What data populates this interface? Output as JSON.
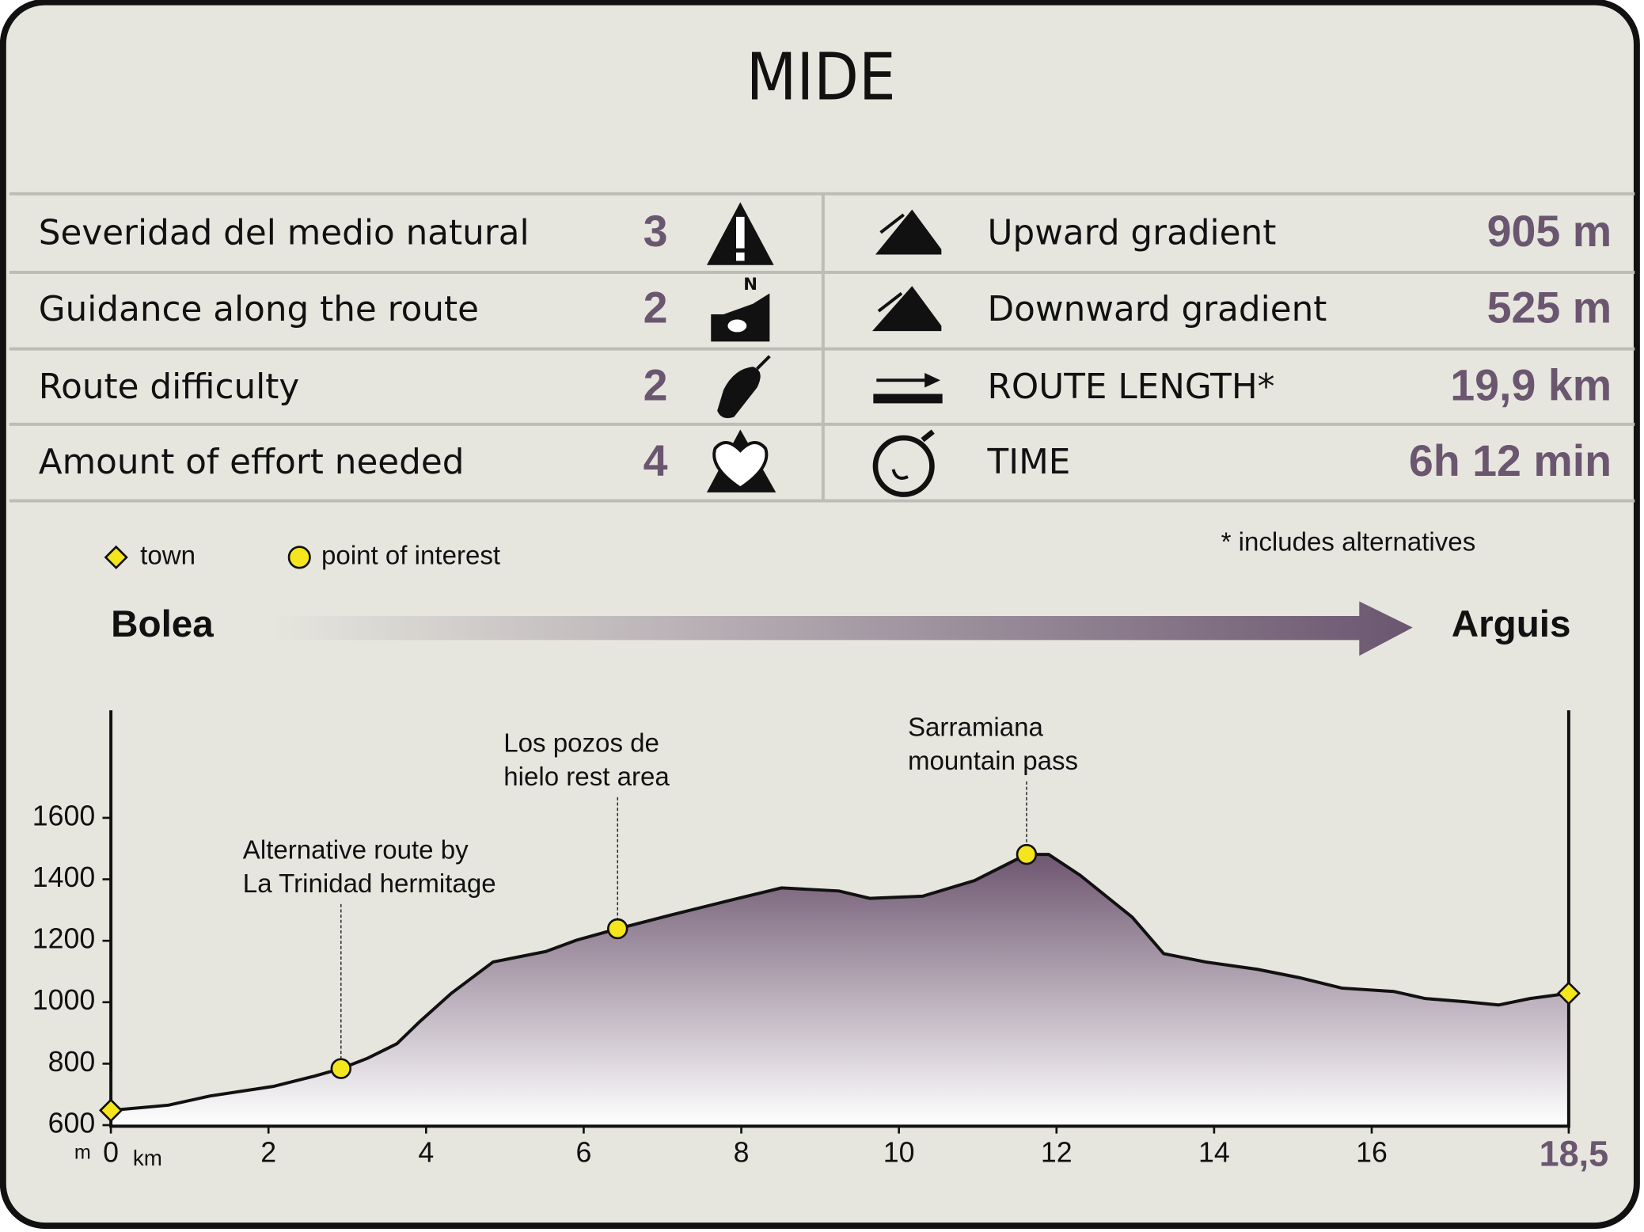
{
  "header": {
    "title": "MIDE"
  },
  "table": {
    "left": [
      {
        "label": "Severidad del medio natural",
        "value": "3"
      },
      {
        "label": "Guidance along the route",
        "value": "2"
      },
      {
        "label": "Route difficulty",
        "value": "2"
      },
      {
        "label": "Amount of effort needed",
        "value": "4"
      }
    ],
    "right": [
      {
        "label": "Upward gradient",
        "value": "905 m"
      },
      {
        "label": "Downward gradient",
        "value": "525 m"
      },
      {
        "label": "ROUTE LENGTH*",
        "value": "19,9 km"
      },
      {
        "label": "TIME",
        "value": "6h 12 min"
      }
    ]
  },
  "legend": {
    "town": "town",
    "poi": "point of interest",
    "note": "* includes alternatives"
  },
  "route": {
    "start": "Bolea",
    "end": "Arguis"
  },
  "chart_data": {
    "type": "area",
    "x_unit": "km",
    "y_unit": "m",
    "xlim": [
      0,
      18.5
    ],
    "ylim": [
      600,
      1950
    ],
    "xticks": [
      0,
      2,
      4,
      6,
      8,
      10,
      12,
      14,
      16,
      {
        "value": 18.5,
        "label": "18,5"
      }
    ],
    "yticks": [
      600,
      800,
      1000,
      1200,
      1400,
      1600
    ],
    "series": [
      {
        "color": "#6e5670",
        "x": [
          0,
          0.73,
          1.26,
          2.06,
          2.59,
          2.92,
          3.26,
          3.63,
          3.92,
          4.32,
          4.85,
          5.52,
          5.91,
          6.43,
          7.11,
          7.91,
          8.51,
          9.24,
          9.63,
          10.3,
          10.96,
          11.62,
          11.9,
          12.3,
          12.96,
          13.36,
          13.89,
          14.55,
          15.08,
          15.62,
          16.28,
          16.68,
          17.21,
          17.61,
          18.01,
          18.5
        ],
        "values": [
          648,
          665,
          695,
          726,
          760,
          784,
          818,
          865,
          937,
          1029,
          1131,
          1165,
          1202,
          1239,
          1284,
          1335,
          1372,
          1362,
          1338,
          1345,
          1396,
          1481,
          1481,
          1413,
          1277,
          1158,
          1131,
          1107,
          1080,
          1046,
          1035,
          1012,
          1001,
          991,
          1012,
          1029
        ]
      }
    ],
    "towns": {
      "x": [
        0,
        18.5
      ],
      "values": [
        648,
        1029
      ]
    },
    "pois": {
      "x": [
        2.92,
        6.43,
        11.62
      ],
      "values": [
        784,
        1239,
        1481
      ],
      "labels": [
        [
          "Alternative route by",
          "La Trinidad hermitage"
        ],
        [
          "Los pozos de",
          "hielo rest area"
        ],
        [
          "Sarramiana",
          "mountain pass"
        ]
      ]
    }
  }
}
